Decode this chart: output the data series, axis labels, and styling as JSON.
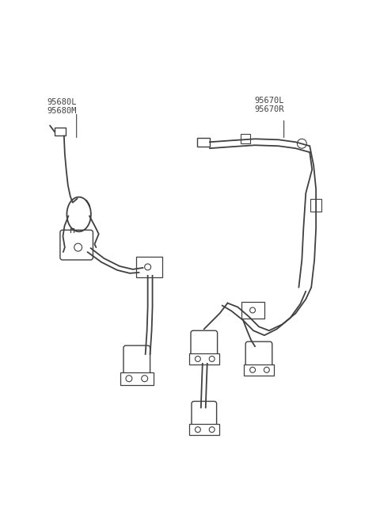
{
  "bg_color": "#ffffff",
  "line_color": "#404040",
  "text_color": "#404040",
  "label_left": "95680L\n95680M",
  "label_right": "95670L\n95670R",
  "figsize": [
    4.8,
    6.55
  ],
  "dpi": 100
}
